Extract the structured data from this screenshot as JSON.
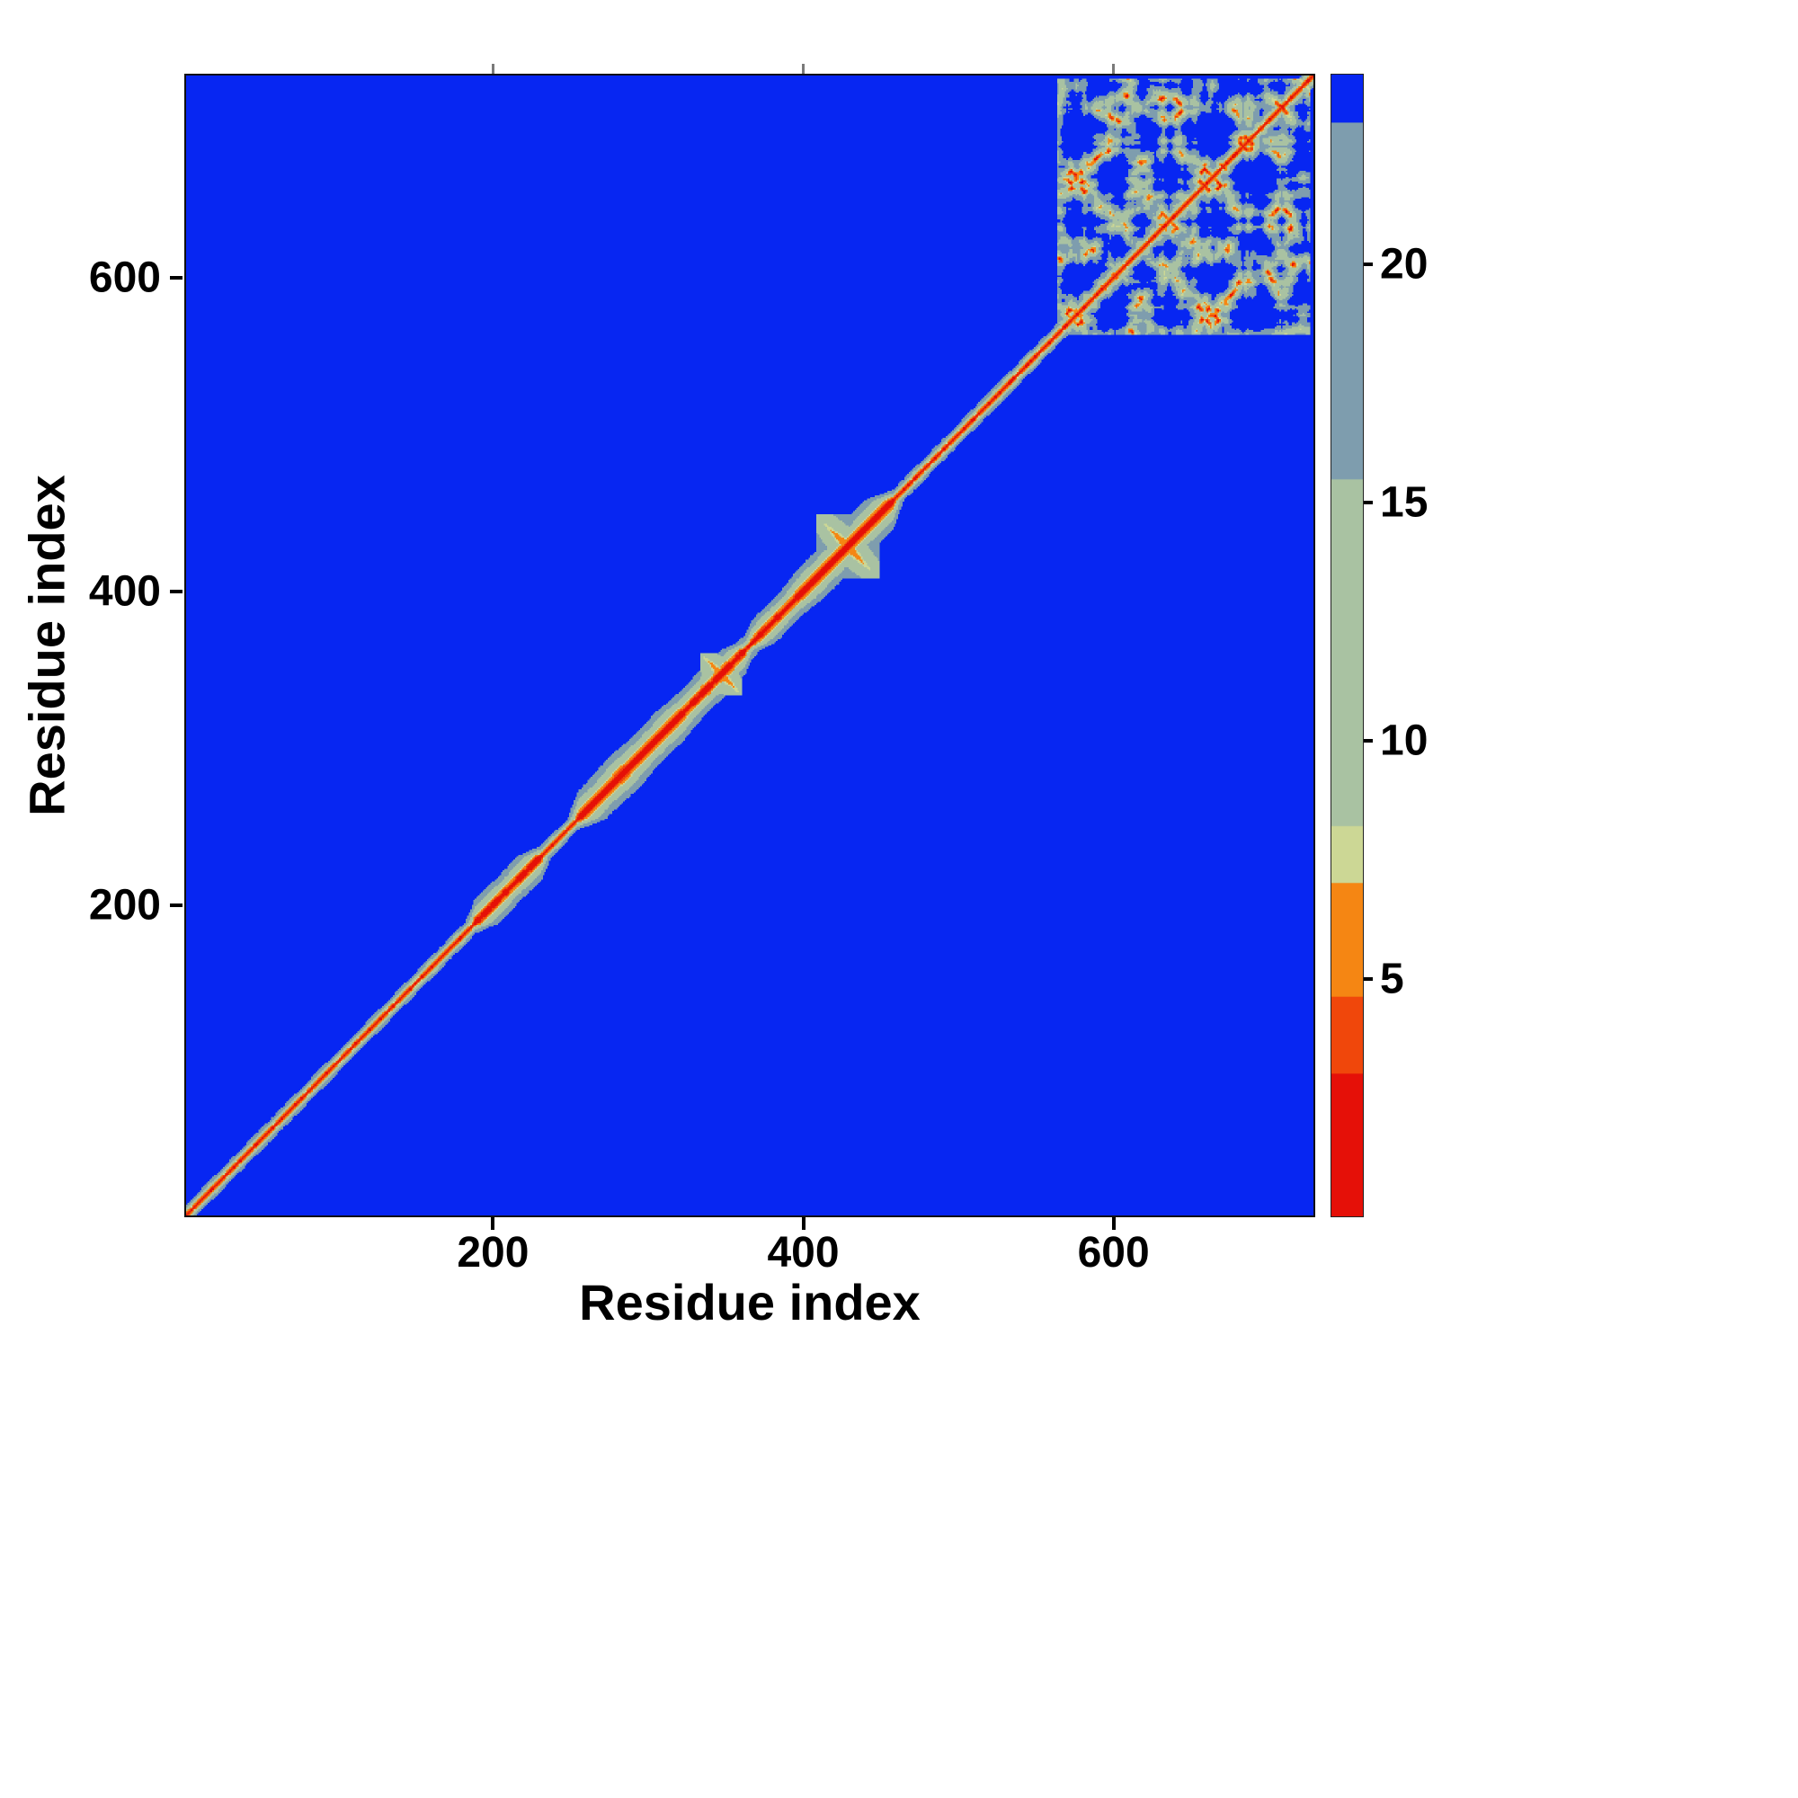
{
  "chart_data": {
    "type": "heatmap",
    "title": "",
    "xlabel": "Residue index",
    "ylabel": "Residue index",
    "x_range": [
      1,
      730
    ],
    "y_range": [
      1,
      730
    ],
    "x_ticks": [
      200,
      400,
      600
    ],
    "y_ticks": [
      200,
      400,
      600
    ],
    "grid": false,
    "legend": "colorbar",
    "background_color": "#0726f2",
    "colorbar": {
      "range": [
        0,
        24
      ],
      "ticks": [
        5,
        10,
        15,
        20
      ],
      "bands": [
        {
          "upto": 3.0,
          "color": "#e51008"
        },
        {
          "upto": 4.6,
          "color": "#f0470b"
        },
        {
          "upto": 7.0,
          "color": "#f58613"
        },
        {
          "upto": 8.2,
          "color": "#ccd795"
        },
        {
          "upto": 15.5,
          "color": "#a9c2a2"
        },
        {
          "upto": 23.0,
          "color": "#7e9dae"
        },
        {
          "upto": 1000,
          "color": "#0726f2"
        }
      ]
    },
    "matrix": {
      "description": "Symmetric 730x730 residue-residue distance map. Red diagonal of sequential contacts with an orange/green fringe; locally compact segments widen the near-diagonal band into elliptical blobs near residues 190-230, 255-360 and 370-460; hairpin-like crosses intersect the diagonal near residues 347 and 429; a folded globular domain spanning roughly residues 565-728 produces the speckled green/orange contact block in the upper-right corner. All other residue pairs are distant (blue background).",
      "n_residues": 730,
      "background_value": 30,
      "extended_rate": 3.3,
      "compact_segments": [
        {
          "start": 188,
          "end": 230,
          "rate": 1.5
        },
        {
          "start": 255,
          "end": 320,
          "rate": 1.25
        },
        {
          "start": 318,
          "end": 362,
          "rate": 1.45
        },
        {
          "start": 368,
          "end": 402,
          "rate": 1.6
        },
        {
          "start": 396,
          "end": 458,
          "rate": 1.3
        }
      ],
      "hairpins": [
        {
          "center": 347,
          "halfwidth": 13,
          "separation": 4.5
        },
        {
          "center": 429,
          "halfwidth": 20,
          "separation": 4.0
        }
      ],
      "globule": {
        "start": 565,
        "end": 728,
        "step": 3.8,
        "radius": 26,
        "seed": 7
      }
    }
  }
}
